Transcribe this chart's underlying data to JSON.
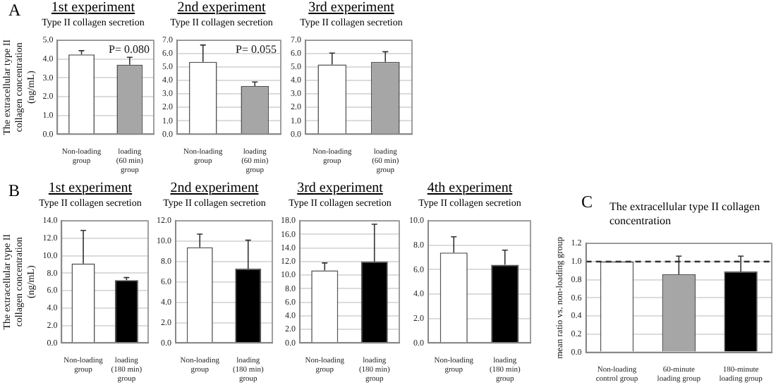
{
  "chart_data": [
    {
      "type": "bar",
      "title": "1st experiment",
      "subtitle": "Type II collagen secretion",
      "ylabel": "The extracellular type II collagen concentration (ng/mL)",
      "annotations": [
        "A",
        "P= 0.080"
      ],
      "categories": [
        "Non-loading group",
        "loading (60 min) group"
      ],
      "values": [
        4.25,
        3.7
      ],
      "errors": [
        0.2,
        0.4
      ],
      "colors": [
        "#ffffff",
        "#a6a6a6"
      ],
      "ylim": [
        0,
        5
      ],
      "yticks": [
        {
          "value": 0,
          "label": "0.0"
        },
        {
          "value": 1,
          "label": "1.0"
        },
        {
          "value": 2,
          "label": "2.0"
        },
        {
          "value": 3,
          "label": "3.0"
        },
        {
          "value": 4,
          "label": "4.0"
        },
        {
          "value": 5,
          "label": "5.0"
        }
      ],
      "grid": "y"
    },
    {
      "type": "bar",
      "title": "2nd experiment",
      "subtitle": "Type II collagen secretion",
      "annotations": [
        "P= 0.055"
      ],
      "categories": [
        "Non-loading group",
        "loading (60 min) group"
      ],
      "values": [
        5.4,
        3.6
      ],
      "errors": [
        1.25,
        0.3
      ],
      "colors": [
        "#ffffff",
        "#a6a6a6"
      ],
      "ylim": [
        0,
        7
      ],
      "yticks": [
        {
          "value": 0,
          "label": "0.0"
        },
        {
          "value": 1,
          "label": "1.0"
        },
        {
          "value": 2,
          "label": "2.0"
        },
        {
          "value": 3,
          "label": "3.0"
        },
        {
          "value": 4,
          "label": "4.0"
        },
        {
          "value": 5,
          "label": "5.0"
        },
        {
          "value": 6,
          "label": "6.0"
        },
        {
          "value": 7,
          "label": "7.0"
        }
      ],
      "grid": "y"
    },
    {
      "type": "bar",
      "title": "3rd experiment",
      "subtitle": "Type II collagen secretion",
      "categories": [
        "Non-loading group",
        "loading (60 min) group"
      ],
      "values": [
        5.2,
        5.4
      ],
      "errors": [
        0.85,
        0.75
      ],
      "colors": [
        "#ffffff",
        "#a6a6a6"
      ],
      "ylim": [
        0,
        7
      ],
      "yticks": [
        {
          "value": 0,
          "label": "0.0"
        },
        {
          "value": 1,
          "label": "1.0"
        },
        {
          "value": 2,
          "label": "2.0"
        },
        {
          "value": 3,
          "label": "3.0"
        },
        {
          "value": 4,
          "label": "4.0"
        },
        {
          "value": 5,
          "label": "5.0"
        },
        {
          "value": 6,
          "label": "6.0"
        },
        {
          "value": 7,
          "label": "7.0"
        }
      ],
      "grid": "y"
    },
    {
      "type": "bar",
      "title": "1st experiment",
      "subtitle": "Type II collagen secretion",
      "ylabel": "The extracellular type II collagen concentration (ng/mL)",
      "annotations": [
        "B"
      ],
      "categories": [
        "Non-loading group",
        "loading (180 min) group"
      ],
      "values": [
        9.1,
        7.2
      ],
      "errors": [
        3.8,
        0.3
      ],
      "colors": [
        "#ffffff",
        "#000000"
      ],
      "ylim": [
        0,
        14
      ],
      "yticks": [
        {
          "value": 0,
          "label": "0.0"
        },
        {
          "value": 2,
          "label": "2.0"
        },
        {
          "value": 4,
          "label": "4.0"
        },
        {
          "value": 6,
          "label": "6.0"
        },
        {
          "value": 8,
          "label": "8.0"
        },
        {
          "value": 10,
          "label": "10.0"
        },
        {
          "value": 12,
          "label": "12.0"
        },
        {
          "value": 14,
          "label": "14.0"
        }
      ],
      "grid": "y"
    },
    {
      "type": "bar",
      "title": "2nd experiment",
      "subtitle": "Type II collagen secretion",
      "categories": [
        "Non-loading group",
        "loading (180 min) group"
      ],
      "values": [
        9.4,
        7.3
      ],
      "errors": [
        1.3,
        2.8
      ],
      "colors": [
        "#ffffff",
        "#000000"
      ],
      "ylim": [
        0,
        12
      ],
      "yticks": [
        {
          "value": 0,
          "label": "0.0"
        },
        {
          "value": 2,
          "label": "2.0"
        },
        {
          "value": 4,
          "label": "4.0"
        },
        {
          "value": 6,
          "label": "6.0"
        },
        {
          "value": 8,
          "label": "8.0"
        },
        {
          "value": 10,
          "label": "10.0"
        },
        {
          "value": 12,
          "label": "12.0"
        }
      ],
      "grid": "y"
    },
    {
      "type": "bar",
      "title": "3rd experiment",
      "subtitle": "Type II collagen secretion",
      "categories": [
        "Non-loading group",
        "loading (180 min) group"
      ],
      "values": [
        10.7,
        12.0
      ],
      "errors": [
        1.1,
        5.5
      ],
      "colors": [
        "#ffffff",
        "#000000"
      ],
      "ylim": [
        0,
        18
      ],
      "yticks": [
        {
          "value": 0,
          "label": "0.0"
        },
        {
          "value": 2,
          "label": "2.0"
        },
        {
          "value": 4,
          "label": "4.0"
        },
        {
          "value": 6,
          "label": "6.0"
        },
        {
          "value": 8,
          "label": "8.0"
        },
        {
          "value": 10,
          "label": "10.0"
        },
        {
          "value": 12,
          "label": "12.0"
        },
        {
          "value": 14,
          "label": "14.0"
        },
        {
          "value": 16,
          "label": "16.0"
        },
        {
          "value": 18,
          "label": "18.0"
        }
      ],
      "grid": "y"
    },
    {
      "type": "bar",
      "title": "4th experiment",
      "subtitle": "Type II collagen secretion",
      "categories": [
        "Non-loading group",
        "loading (180 min) group"
      ],
      "values": [
        7.4,
        6.4
      ],
      "errors": [
        1.3,
        1.2
      ],
      "colors": [
        "#ffffff",
        "#000000"
      ],
      "ylim": [
        0,
        10
      ],
      "yticks": [
        {
          "value": 0,
          "label": "0.0"
        },
        {
          "value": 2,
          "label": "2.0"
        },
        {
          "value": 4,
          "label": "4.0"
        },
        {
          "value": 6,
          "label": "6.0"
        },
        {
          "value": 8,
          "label": "8.0"
        },
        {
          "value": 10,
          "label": "10.0"
        }
      ],
      "grid": "y"
    },
    {
      "type": "bar",
      "title": "The extracellular type II collagen concentration",
      "ylabel": "mean ratio vs. non-loading group",
      "annotations": [
        "C"
      ],
      "categories": [
        "Non-loading control group",
        "60-minute loading group",
        "180-minute loading group"
      ],
      "values": [
        1.0,
        0.86,
        0.89
      ],
      "errors": [
        null,
        0.2,
        0.17
      ],
      "colors": [
        "#ffffff",
        "#a6a6a6",
        "#000000"
      ],
      "ylim": [
        0,
        1.2
      ],
      "yticks": [
        {
          "value": 0,
          "label": "0.0"
        },
        {
          "value": 0.2,
          "label": "0.2"
        },
        {
          "value": 0.4,
          "label": "0.4"
        },
        {
          "value": 0.6,
          "label": "0.6"
        },
        {
          "value": 0.8,
          "label": "0.8"
        },
        {
          "value": 1.0,
          "label": "1.0"
        },
        {
          "value": 1.2,
          "label": "1.2"
        }
      ],
      "grid": "y",
      "ref_lines": [
        {
          "axis": "y",
          "value": 1.0,
          "line_style": "dashed"
        }
      ]
    }
  ]
}
